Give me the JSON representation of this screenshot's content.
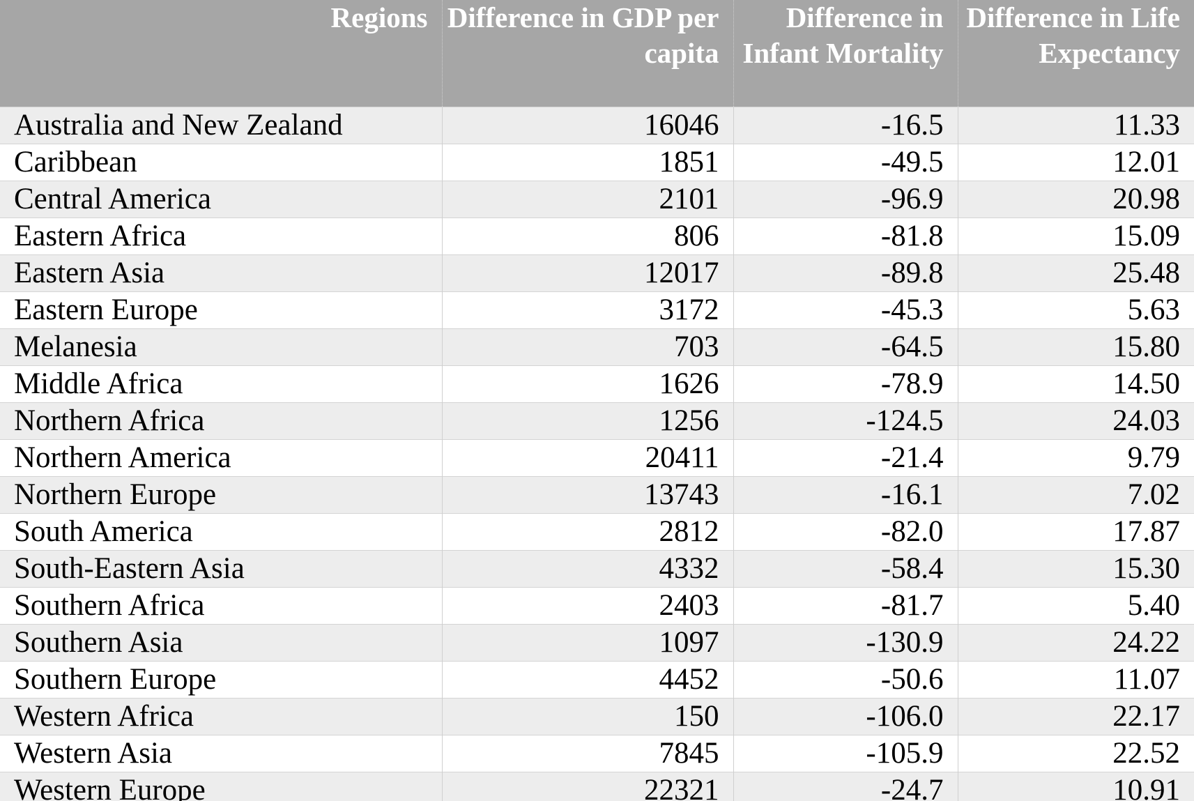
{
  "table": {
    "headers": {
      "region": "Regions",
      "gdp": "Difference in GDP per capita",
      "infant": "Difference in Infant Mortality",
      "life": "Difference in Life Expectancy"
    },
    "rows": [
      {
        "region": "Australia and New Zealand",
        "gdp": "16046",
        "infant": "-16.5",
        "life": "11.33"
      },
      {
        "region": "Caribbean",
        "gdp": "1851",
        "infant": "-49.5",
        "life": "12.01"
      },
      {
        "region": "Central America",
        "gdp": "2101",
        "infant": "-96.9",
        "life": "20.98"
      },
      {
        "region": "Eastern Africa",
        "gdp": "806",
        "infant": "-81.8",
        "life": "15.09"
      },
      {
        "region": "Eastern Asia",
        "gdp": "12017",
        "infant": "-89.8",
        "life": "25.48"
      },
      {
        "region": "Eastern Europe",
        "gdp": "3172",
        "infant": "-45.3",
        "life": "5.63"
      },
      {
        "region": "Melanesia",
        "gdp": "703",
        "infant": "-64.5",
        "life": "15.80"
      },
      {
        "region": "Middle Africa",
        "gdp": "1626",
        "infant": "-78.9",
        "life": "14.50"
      },
      {
        "region": "Northern Africa",
        "gdp": "1256",
        "infant": "-124.5",
        "life": "24.03"
      },
      {
        "region": "Northern America",
        "gdp": "20411",
        "infant": "-21.4",
        "life": "9.79"
      },
      {
        "region": "Northern Europe",
        "gdp": "13743",
        "infant": "-16.1",
        "life": "7.02"
      },
      {
        "region": "South America",
        "gdp": "2812",
        "infant": "-82.0",
        "life": "17.87"
      },
      {
        "region": "South-Eastern Asia",
        "gdp": "4332",
        "infant": "-58.4",
        "life": "15.30"
      },
      {
        "region": "Southern Africa",
        "gdp": "2403",
        "infant": "-81.7",
        "life": "5.40"
      },
      {
        "region": "Southern Asia",
        "gdp": "1097",
        "infant": "-130.9",
        "life": "24.22"
      },
      {
        "region": "Southern Europe",
        "gdp": "4452",
        "infant": "-50.6",
        "life": "11.07"
      },
      {
        "region": "Western Africa",
        "gdp": "150",
        "infant": "-106.0",
        "life": "22.17"
      },
      {
        "region": "Western Asia",
        "gdp": "7845",
        "infant": "-105.9",
        "life": "22.52"
      },
      {
        "region": "Western Europe",
        "gdp": "22321",
        "infant": "-24.7",
        "life": "10.91"
      }
    ]
  }
}
